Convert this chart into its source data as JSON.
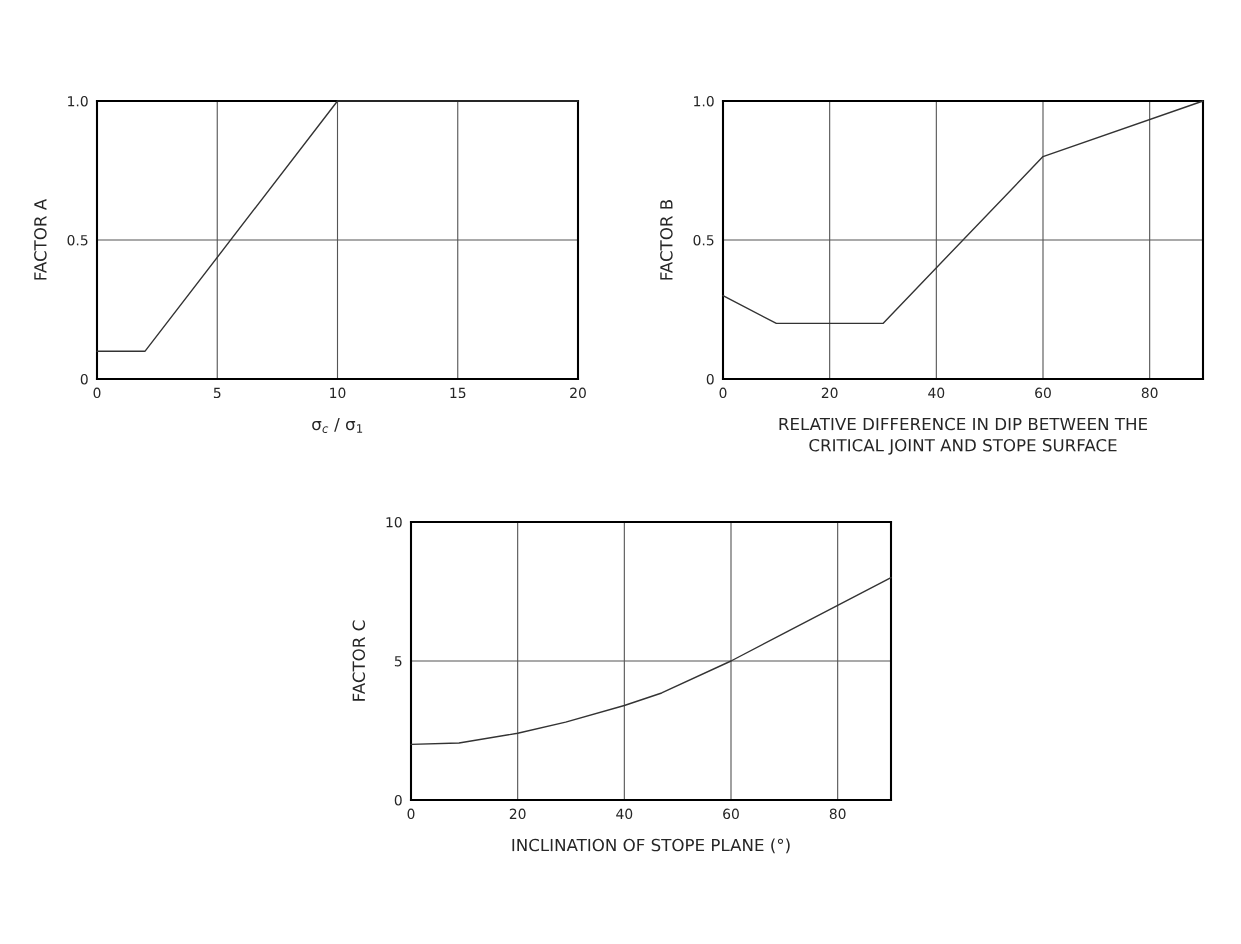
{
  "chart_data": [
    {
      "type": "line",
      "xlabel": "σ$_{c}$ / σ$_{1}$",
      "ylabel": "FACTOR A",
      "x": [
        0,
        2,
        10,
        20
      ],
      "series": [
        {
          "color": "#333333",
          "values": [
            0.1,
            0.1,
            1.0,
            1.0
          ]
        }
      ],
      "xlim": [
        0,
        20
      ],
      "ylim": [
        0,
        1
      ],
      "xticks": [
        0,
        5,
        10,
        15,
        20
      ],
      "yticks": [
        0,
        0.5,
        {
          "value": 1,
          "label": "1.0"
        }
      ],
      "grid": true,
      "marker": "none",
      "line_style": "solid"
    },
    {
      "type": "line",
      "xlabel": "RELATIVE DIFFERENCE IN DIP BETWEEN THE\nCRITICAL JOINT AND STOPE SURFACE",
      "ylabel": "FACTOR B",
      "x": [
        0,
        10,
        30,
        60,
        90
      ],
      "series": [
        {
          "color": "#333333",
          "values": [
            0.3,
            0.2,
            0.2,
            0.8,
            1.0
          ]
        }
      ],
      "xlim": [
        0,
        90
      ],
      "ylim": [
        0,
        1
      ],
      "xticks": [
        0,
        20,
        40,
        60,
        80
      ],
      "yticks": [
        0,
        0.5,
        {
          "value": 1,
          "label": "1.0"
        }
      ],
      "grid": true,
      "marker": "none",
      "line_style": "solid"
    },
    {
      "type": "line",
      "xlabel": "INCLINATION OF STOPE PLANE (°)",
      "ylabel": "FACTOR C",
      "x": [
        0,
        9,
        20,
        29,
        40,
        47,
        60,
        70,
        80,
        90
      ],
      "series": [
        {
          "color": "#333333",
          "values": [
            2.0,
            2.05,
            2.4,
            2.8,
            3.4,
            3.85,
            5.0,
            6.0,
            7.0,
            8.0
          ]
        }
      ],
      "xlim": [
        0,
        90
      ],
      "ylim": [
        0,
        10
      ],
      "xticks": [
        0,
        20,
        40,
        60,
        80
      ],
      "yticks": [
        0,
        5,
        10
      ],
      "grid": true,
      "marker": "none",
      "line_style": "solid"
    }
  ]
}
